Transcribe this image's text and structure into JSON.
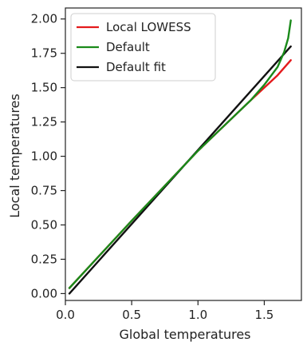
{
  "chart_data": {
    "type": "line",
    "xlabel": "Global temperatures",
    "ylabel": "Local temperatures",
    "xlim": [
      0.0,
      1.78
    ],
    "ylim": [
      -0.05,
      2.08
    ],
    "x_ticks": [
      0.0,
      0.5,
      1.0,
      1.5
    ],
    "x_tick_labels": [
      "0.0",
      "0.5",
      "1.0",
      "1.5"
    ],
    "y_ticks": [
      0.0,
      0.25,
      0.5,
      0.75,
      1.0,
      1.25,
      1.5,
      1.75,
      2.0
    ],
    "y_tick_labels": [
      "0.00",
      "0.25",
      "0.50",
      "0.75",
      "1.00",
      "1.25",
      "1.50",
      "1.75",
      "2.00"
    ],
    "grid": false,
    "legend_position": "top-left",
    "series": [
      {
        "name": "Local LOWESS",
        "color": "#e41a1c",
        "x": [
          0.03,
          0.5,
          1.0,
          1.4,
          1.5,
          1.6,
          1.7
        ],
        "y": [
          0.04,
          0.53,
          1.04,
          1.41,
          1.5,
          1.59,
          1.7
        ]
      },
      {
        "name": "Default",
        "color": "#1a8a1a",
        "x": [
          0.03,
          0.5,
          1.0,
          1.4,
          1.5,
          1.6,
          1.65,
          1.68,
          1.7
        ],
        "y": [
          0.04,
          0.53,
          1.04,
          1.41,
          1.52,
          1.65,
          1.76,
          1.86,
          1.99
        ]
      },
      {
        "name": "Default fit",
        "color": "#111111",
        "x": [
          0.03,
          1.7
        ],
        "y": [
          0.0,
          1.8
        ]
      }
    ]
  }
}
